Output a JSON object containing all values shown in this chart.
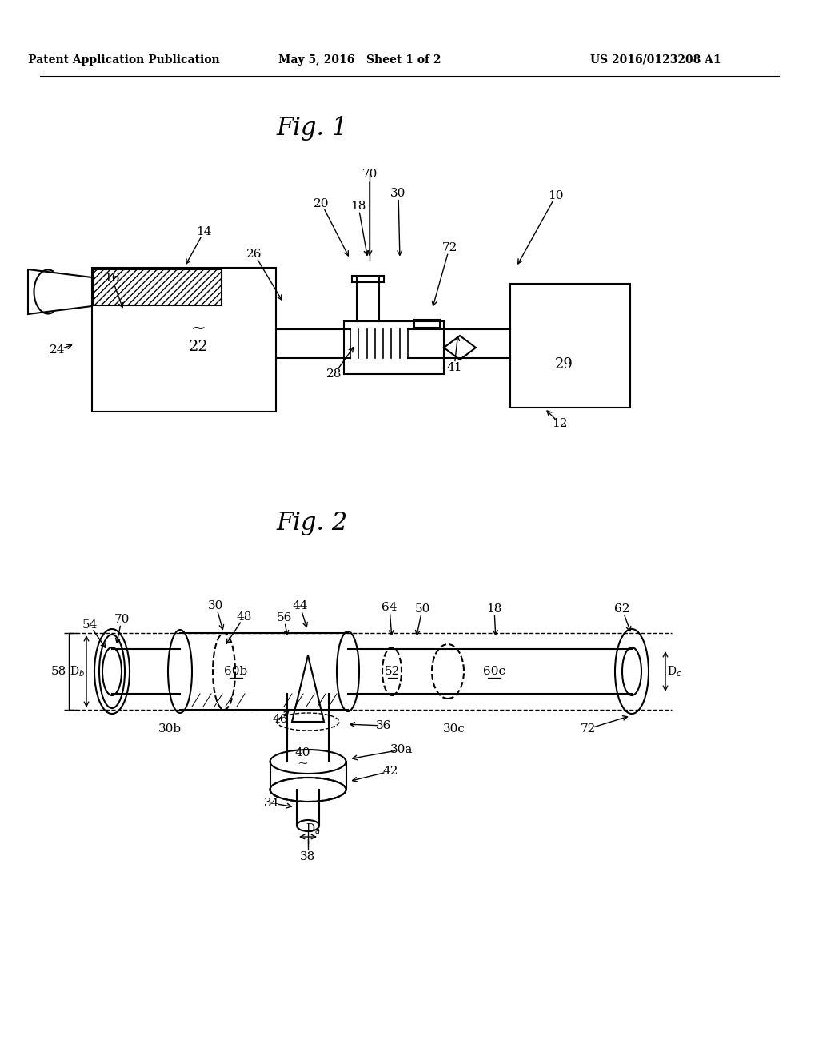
{
  "bg_color": "#ffffff",
  "header_left": "Patent Application Publication",
  "header_mid": "May 5, 2016   Sheet 1 of 2",
  "header_right": "US 2016/0123208 A1",
  "fig1_title": "Fig. 1",
  "fig2_title": "Fig. 2"
}
